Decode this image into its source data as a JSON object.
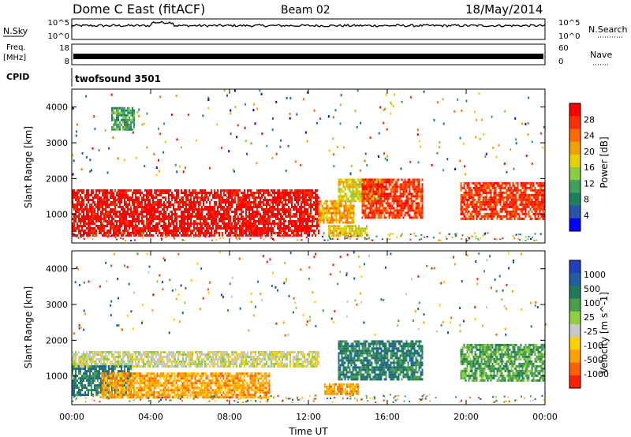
{
  "header": {
    "title": "Dome C East (fitACF)",
    "beam": "Beam 02",
    "date": "18/May/2014"
  },
  "top_panels": {
    "nsky_label": "N.Sky",
    "nsky_ticks": [
      "10^5",
      "10^0"
    ],
    "nsearch_label": "N.Search",
    "nsearch_ticks": [
      "10^5",
      "10^0"
    ],
    "freq_label": "Freq.",
    "freq_unit": "[MHz]",
    "freq_ticks": [
      "18",
      "8"
    ],
    "nave_label": "Nave",
    "nave_ticks": [
      "60",
      "0"
    ],
    "cpid_label": "CPID",
    "cpid_value": "twofsound 3501"
  },
  "colors": {
    "power_scale": [
      "#0000ff",
      "#2a52a6",
      "#1a8060",
      "#3fa060",
      "#8ccc40",
      "#e6d200",
      "#f0a000",
      "#ff6a00",
      "#ff3000",
      "#ff0000"
    ],
    "velocity_scale": [
      "#2040c0",
      "#2060a0",
      "#207a5a",
      "#4aa04a",
      "#90d040",
      "#c8c8c8",
      "#ffd000",
      "#ffa000",
      "#ff6000",
      "#ff2000"
    ]
  },
  "chart_data": [
    {
      "type": "heatmap",
      "title": "Power",
      "xlabel": "",
      "ylabel": "Slant Range [km]",
      "x_ticks": [
        "00:00",
        "04:00",
        "08:00",
        "12:00",
        "16:00",
        "20:00",
        "00:00"
      ],
      "y_ticks": [
        "4000",
        "3000",
        "2000",
        "1000"
      ],
      "ylim": [
        200,
        4500
      ],
      "xlim": [
        0,
        24
      ],
      "colorbar_label": "Power [dB]",
      "colorbar_ticks": [
        "28",
        "24",
        "20",
        "16",
        "12",
        "8",
        "4"
      ],
      "regions": [
        {
          "t0": 0.0,
          "t1": 12.5,
          "r0": 400,
          "r1": 1700,
          "value_db": 28
        },
        {
          "t0": 12.5,
          "t1": 14.3,
          "r0": 800,
          "r1": 1400,
          "value_db": 20
        },
        {
          "t0": 13.5,
          "t1": 15.6,
          "r0": 1400,
          "r1": 2000,
          "value_db": 16
        },
        {
          "t0": 14.7,
          "t1": 17.8,
          "r0": 900,
          "r1": 2000,
          "value_db": 24
        },
        {
          "t0": 13.0,
          "t1": 15.0,
          "r0": 400,
          "r1": 700,
          "value_db": 16
        },
        {
          "t0": 19.7,
          "t1": 24.0,
          "r0": 900,
          "r1": 1900,
          "value_db": 24
        },
        {
          "t0": 2.0,
          "t1": 3.2,
          "r0": 3400,
          "r1": 4000,
          "value_db": 8
        }
      ]
    },
    {
      "type": "heatmap",
      "title": "Velocity",
      "xlabel": "Time UT",
      "ylabel": "Slant Range [km]",
      "x_ticks": [
        "00:00",
        "04:00",
        "08:00",
        "12:00",
        "16:00",
        "20:00",
        "00:00"
      ],
      "y_ticks": [
        "4000",
        "3000",
        "2000",
        "1000"
      ],
      "ylim": [
        200,
        4500
      ],
      "xlim": [
        0,
        24
      ],
      "colorbar_label": "Velocity [m s^-1]",
      "colorbar_ticks": [
        "1000",
        "500",
        "100",
        "25",
        "-25",
        "-100",
        "-500",
        "-1000"
      ],
      "regions": [
        {
          "t0": 0.0,
          "t1": 12.5,
          "r0": 1300,
          "r1": 1700,
          "value_ms": -10
        },
        {
          "t0": 0.0,
          "t1": 3.0,
          "r0": 500,
          "r1": 1300,
          "value_ms": 200
        },
        {
          "t0": 1.5,
          "t1": 10.0,
          "r0": 400,
          "r1": 1100,
          "value_ms": -150
        },
        {
          "t0": 13.5,
          "t1": 17.8,
          "r0": 900,
          "r1": 2000,
          "value_ms": 150
        },
        {
          "t0": 12.8,
          "t1": 14.5,
          "r0": 500,
          "r1": 800,
          "value_ms": -150
        },
        {
          "t0": 19.7,
          "t1": 24.0,
          "r0": 900,
          "r1": 1900,
          "value_ms": 100
        }
      ]
    }
  ]
}
